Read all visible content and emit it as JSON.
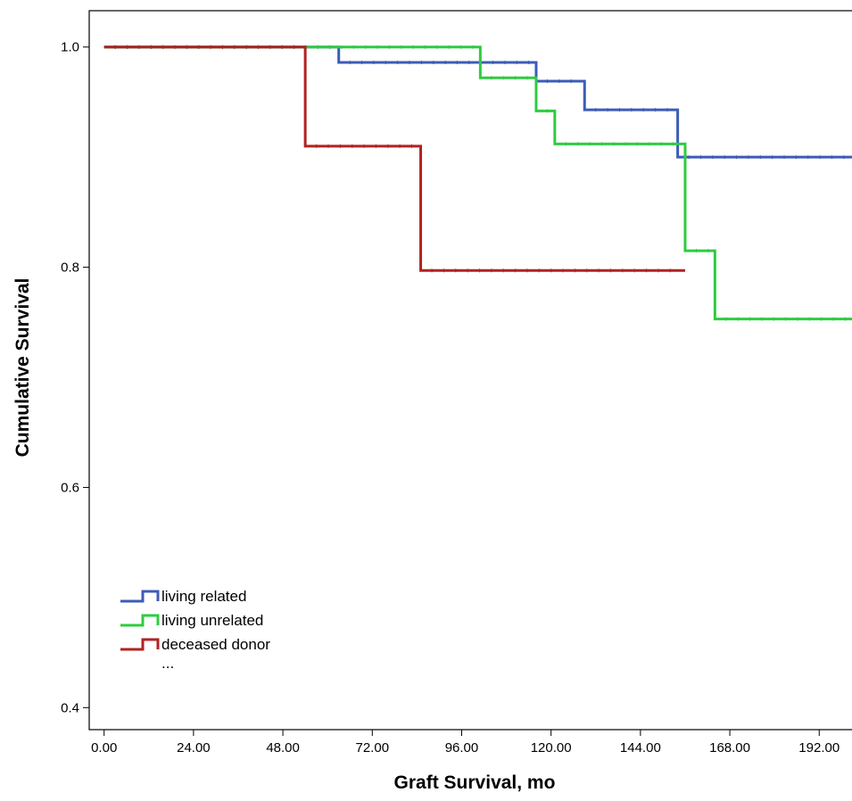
{
  "chart_data": {
    "type": "line",
    "title": "",
    "xlabel": "Graft Survival, mo",
    "ylabel": "Cumulative Survival",
    "xlim": [
      -4,
      202
    ],
    "ylim": [
      0.38,
      1.033
    ],
    "x_ticks": [
      0,
      24,
      48,
      72,
      96,
      120,
      144,
      168,
      192
    ],
    "x_tick_labels": [
      "0.00",
      "24.00",
      "48.00",
      "72.00",
      "96.00",
      "120.00",
      "144.00",
      "168.00",
      "192.00"
    ],
    "y_ticks": [
      0.4,
      0.6,
      0.8,
      1.0
    ],
    "y_tick_labels": [
      "0.4",
      "0.6",
      "0.8",
      "1.0"
    ],
    "grid": false,
    "legend_position": "bottom-left",
    "step": true,
    "series": [
      {
        "name": "living  related",
        "color": "#3d5cb8",
        "x": [
          0,
          63,
          116,
          129,
          154,
          202
        ],
        "y": [
          1.0,
          0.986,
          0.969,
          0.943,
          0.9,
          0.9
        ]
      },
      {
        "name": "living unrelated",
        "color": "#2ecc40",
        "x": [
          0,
          101,
          116,
          121,
          156,
          164,
          202
        ],
        "y": [
          1.0,
          0.972,
          0.942,
          0.912,
          0.815,
          0.753,
          0.753
        ]
      },
      {
        "name": "deceased donor",
        "color": "#b22222",
        "x": [
          0,
          54,
          85,
          156
        ],
        "y": [
          1.0,
          0.91,
          0.797,
          0.797
        ]
      }
    ],
    "legend_extra": "..."
  }
}
